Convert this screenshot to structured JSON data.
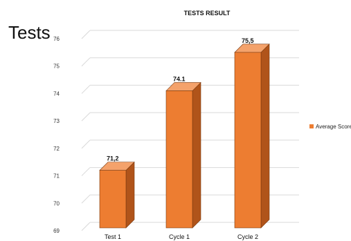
{
  "slide": {
    "heading": "Tests"
  },
  "chart_data": {
    "type": "bar",
    "title": "TESTS RESULT",
    "categories": [
      "Test 1",
      "Cycle 1",
      "Cycle 2"
    ],
    "series": [
      {
        "name": "Average Score",
        "values": [
          71.2,
          74.1,
          75.5
        ],
        "data_labels": [
          "71,2",
          "74.1",
          "75,5"
        ]
      }
    ],
    "ylim": [
      69,
      76
    ],
    "yticks": [
      69,
      70,
      71,
      72,
      73,
      74,
      75,
      76
    ],
    "grid": true,
    "legend_position": "right",
    "colors": {
      "bar_front": "#ED7D31",
      "bar_side": "#B0541A",
      "bar_top": "#F4A26B",
      "grid": "#D9D9D9"
    }
  }
}
